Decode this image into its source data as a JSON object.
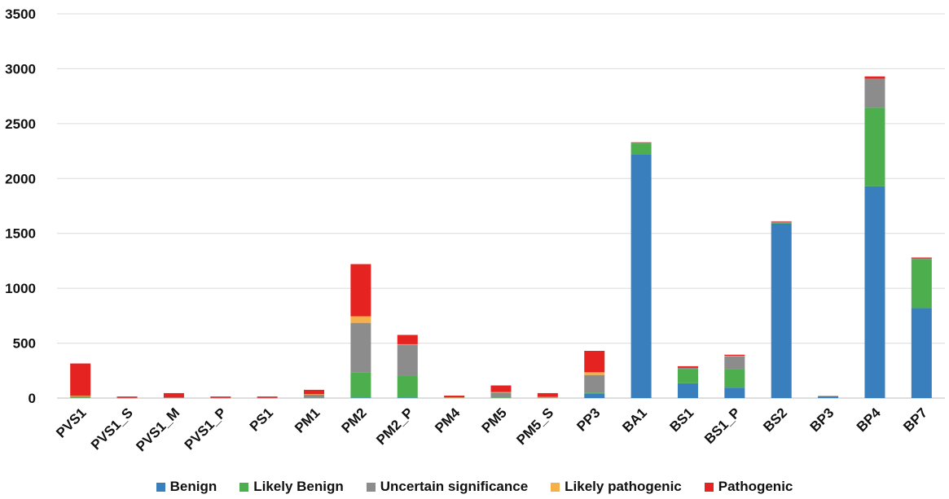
{
  "chart_data": {
    "type": "bar",
    "stacked": true,
    "categories": [
      "PVS1",
      "PVS1_S",
      "PVS1_M",
      "PVS1_P",
      "PS1",
      "PM1",
      "PM2",
      "PM2_P",
      "PM4",
      "PM5",
      "PM5_S",
      "PP3",
      "BA1",
      "BS1",
      "BS1_P",
      "BS2",
      "BP3",
      "BP4",
      "BP7"
    ],
    "series": [
      {
        "name": "Benign",
        "color": "#3a7fbd",
        "values": [
          0,
          0,
          0,
          0,
          0,
          0,
          5,
          5,
          0,
          0,
          0,
          40,
          2220,
          135,
          95,
          1590,
          15,
          1930,
          820
        ]
      },
      {
        "name": "Likely Benign",
        "color": "#4cae4c",
        "values": [
          5,
          0,
          0,
          0,
          0,
          2,
          230,
          195,
          0,
          5,
          0,
          10,
          100,
          125,
          165,
          10,
          0,
          715,
          445
        ]
      },
      {
        "name": "Uncertain significance",
        "color": "#8c8c8c",
        "values": [
          10,
          2,
          5,
          2,
          2,
          28,
          450,
          285,
          5,
          45,
          5,
          160,
          5,
          15,
          120,
          5,
          5,
          265,
          5
        ]
      },
      {
        "name": "Likely pathogenic",
        "color": "#f5b04a",
        "values": [
          5,
          0,
          0,
          0,
          0,
          5,
          60,
          5,
          2,
          5,
          5,
          25,
          0,
          0,
          5,
          0,
          0,
          0,
          0
        ]
      },
      {
        "name": "Pathogenic",
        "color": "#e52421",
        "values": [
          295,
          12,
          40,
          12,
          12,
          40,
          475,
          85,
          15,
          60,
          35,
          195,
          5,
          15,
          10,
          5,
          0,
          20,
          10
        ]
      }
    ],
    "ylim": [
      0,
      3500
    ],
    "yticks": [
      0,
      500,
      1000,
      1500,
      2000,
      2500,
      3000,
      3500
    ],
    "grid": true,
    "legend_position": "bottom"
  }
}
